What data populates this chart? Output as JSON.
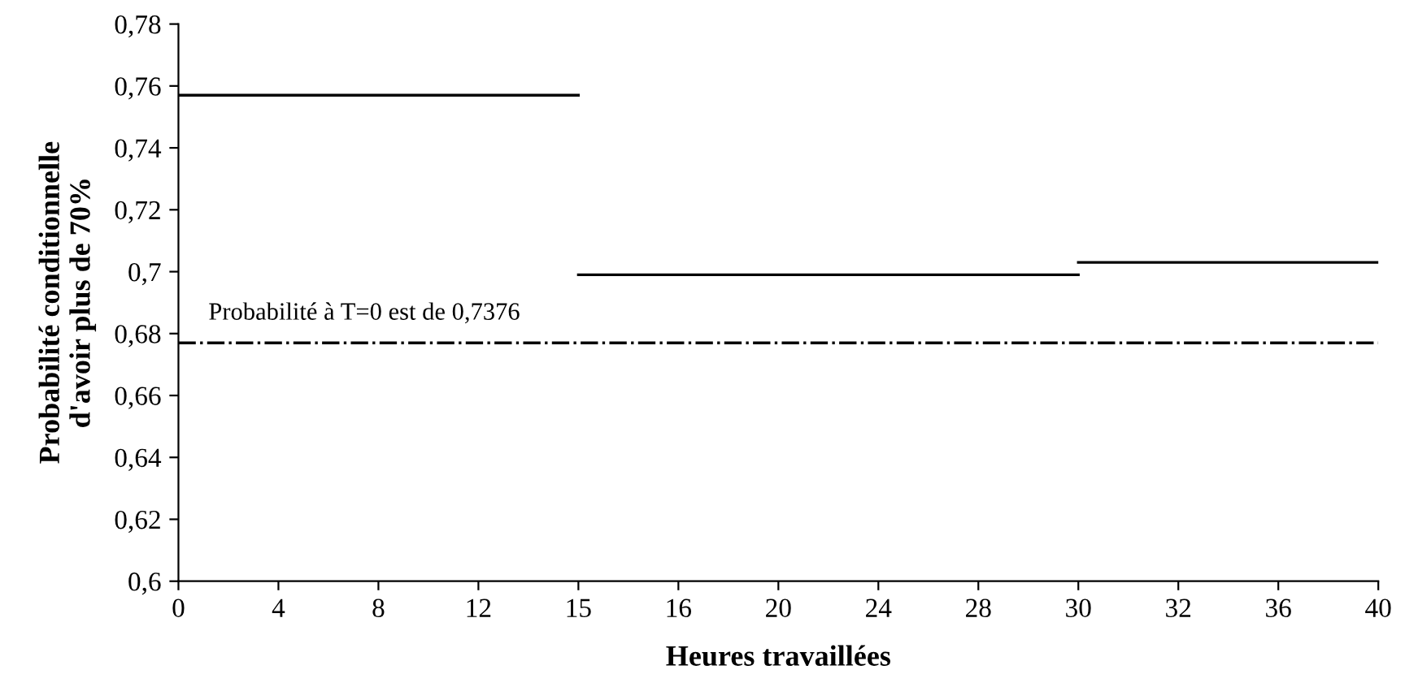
{
  "chart_data": {
    "type": "step",
    "xlabel": "Heures travaillées",
    "ylabel": "Probabilité conditionnelle\nd'avoir plus de 70%",
    "categories": [
      "0",
      "4",
      "8",
      "12",
      "15",
      "16",
      "20",
      "24",
      "28",
      "30",
      "32",
      "36",
      "40"
    ],
    "series": [
      {
        "color": "#000000",
        "values": [
          0.757,
          0.757,
          0.757,
          0.757,
          0.699,
          0.699,
          0.699,
          0.699,
          0.699,
          0.703,
          0.703,
          0.703,
          0.703
        ]
      }
    ],
    "ylim": [
      0.6,
      0.78
    ],
    "yticks": [
      {
        "value": 0.6,
        "label": "0,6"
      },
      {
        "value": 0.62,
        "label": "0,62"
      },
      {
        "value": 0.64,
        "label": "0,64"
      },
      {
        "value": 0.66,
        "label": "0,66"
      },
      {
        "value": 0.68,
        "label": "0,68"
      },
      {
        "value": 0.7,
        "label": "0,7"
      },
      {
        "value": 0.72,
        "label": "0,72"
      },
      {
        "value": 0.74,
        "label": "0,74"
      },
      {
        "value": 0.76,
        "label": "0,76"
      },
      {
        "value": 0.78,
        "label": "0,78"
      }
    ],
    "ref_lines": [
      {
        "axis": "y",
        "value": 0.677,
        "color": "#000000",
        "line_style": "dashdot"
      }
    ],
    "annotations": [
      "Probabilité à T=0 est de 0,7376"
    ],
    "grid": false,
    "legend": false
  }
}
